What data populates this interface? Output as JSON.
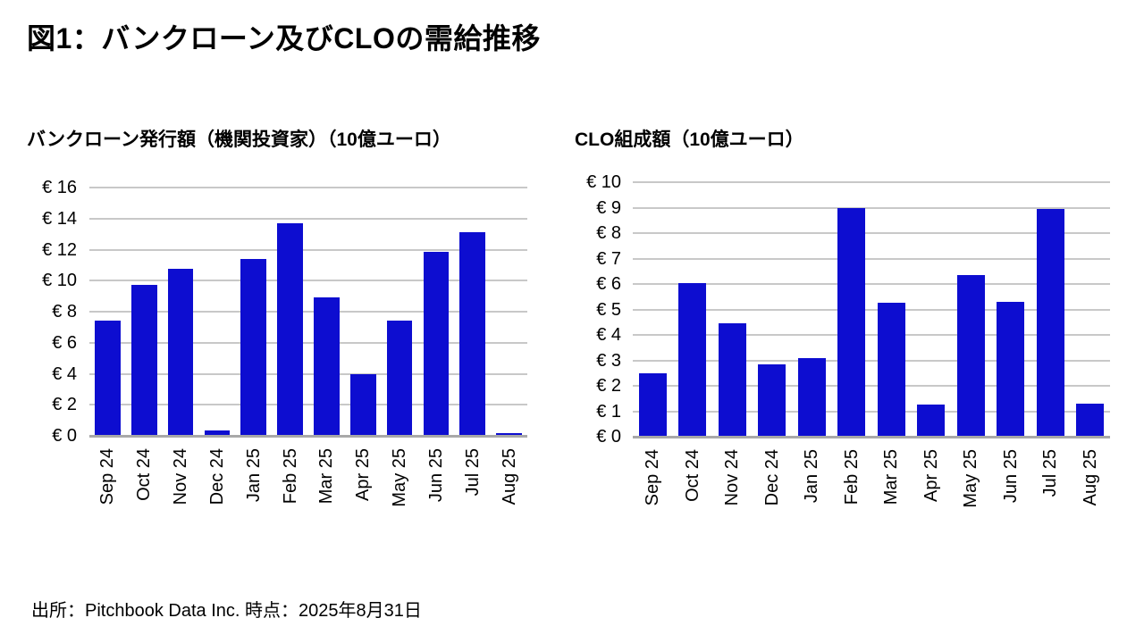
{
  "header": {
    "title": "図1：バンクローン及びCLOの需給推移"
  },
  "footer": {
    "source": "出所：Pitchbook Data Inc. 時点：2025年8月31日"
  },
  "colors": {
    "bar": "#0d0dd0",
    "gridline": "#c8c8c8",
    "axis_line": "#a8a8a8",
    "text": "#000000",
    "background": "#ffffff"
  },
  "chart_data": [
    {
      "type": "bar",
      "title": "バンクローン発行額（機関投資家）（10億ユーロ）",
      "categories": [
        "Sep 24",
        "Oct 24",
        "Nov 24",
        "Dec 24",
        "Jan 25",
        "Feb 25",
        "Mar 25",
        "Apr 25",
        "May 25",
        "Jun 25",
        "Jul 25",
        "Aug 25"
      ],
      "values": [
        7.4,
        9.75,
        10.75,
        0.35,
        11.4,
        13.7,
        8.9,
        4.0,
        7.4,
        11.85,
        13.1,
        0.2
      ],
      "ylabel_prefix": "€ ",
      "ylim": [
        0,
        16
      ],
      "ytick_step": 2,
      "grid": true,
      "legend_position": "none",
      "bar_color": "#0d0dd0"
    },
    {
      "type": "bar",
      "title": "CLO組成額（10億ユーロ）",
      "categories": [
        "Sep 24",
        "Oct 24",
        "Nov 24",
        "Dec 24",
        "Jan 25",
        "Feb 25",
        "Mar 25",
        "Apr 25",
        "May 25",
        "Jun 25",
        "Jul 25",
        "Aug 25"
      ],
      "values": [
        2.5,
        6.05,
        4.45,
        2.85,
        3.1,
        9.0,
        5.25,
        1.25,
        6.35,
        5.3,
        8.95,
        1.3
      ],
      "ylabel_prefix": "€ ",
      "ylim": [
        0,
        10
      ],
      "ytick_step": 1,
      "grid": true,
      "legend_position": "none",
      "bar_color": "#0d0dd0"
    }
  ]
}
